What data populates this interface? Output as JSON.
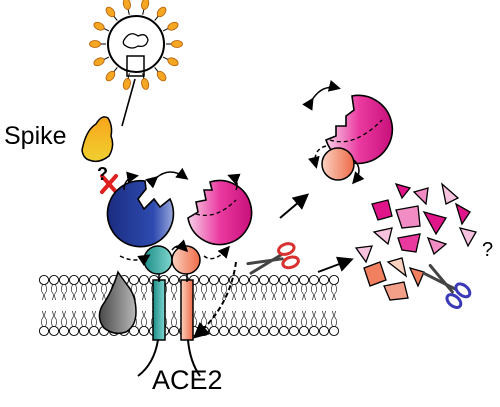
{
  "labels": {
    "spike": "Spike",
    "ace2": "ACE2",
    "question_binding": "?",
    "question_fate": "?"
  },
  "colors": {
    "blue_domain": "#223a96",
    "magenta_domain": "#e0158a",
    "teal_domain": "#26a8a0",
    "salmon_domain": "#f08060",
    "spike_orange": "#f5a623",
    "gray_protein": "#6f6f6f",
    "inhibit_cross": "#e02020",
    "scissors_red": "#d93030",
    "scissors_blue": "#3a3ab8"
  },
  "icons": [
    "virus-icon",
    "spike-icon",
    "membrane-lipid-bilayer",
    "scissors-icon",
    "scissors-icon-blue",
    "inhibit-cross-icon"
  ]
}
